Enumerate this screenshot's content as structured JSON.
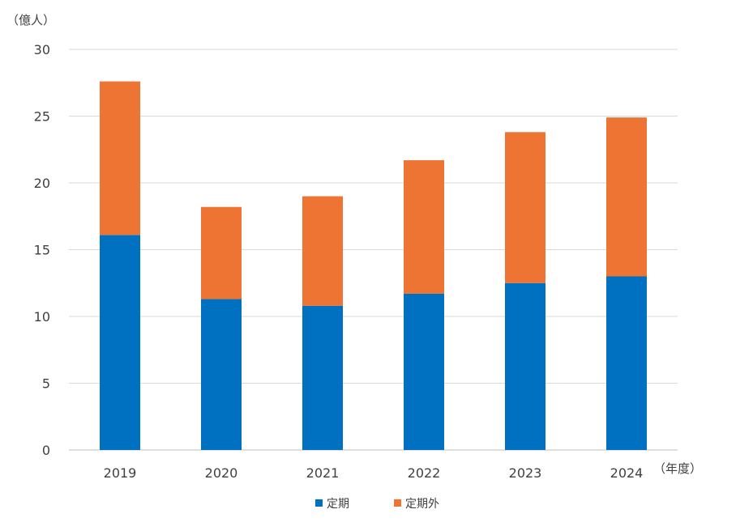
{
  "chart_data": {
    "type": "bar",
    "stacked": true,
    "categories": [
      "2019",
      "2020",
      "2021",
      "2022",
      "2023",
      "2024"
    ],
    "series": [
      {
        "name": "定期",
        "color": "#0070C0",
        "values": [
          16.1,
          11.3,
          10.8,
          11.7,
          12.5,
          13.0
        ]
      },
      {
        "name": "定期外",
        "color": "#ED7432",
        "values": [
          11.5,
          6.9,
          8.2,
          10.0,
          11.3,
          11.9
        ]
      }
    ],
    "ylim": [
      0,
      30
    ],
    "yticks": [
      0,
      5,
      10,
      15,
      20,
      25,
      30
    ],
    "ylabel": "（億人）",
    "xlabel": "（年度）",
    "grid": true,
    "legend_position": "bottom"
  }
}
